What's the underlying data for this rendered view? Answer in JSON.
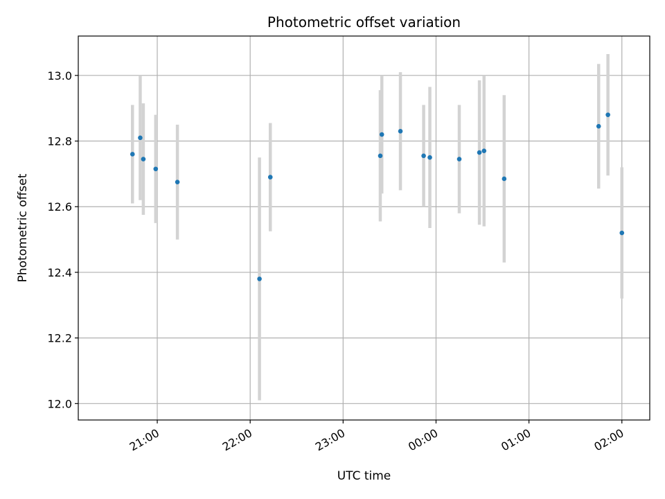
{
  "chart_data": {
    "type": "scatter",
    "title": "Photometric offset variation",
    "xlabel": "UTC time",
    "ylabel": "Photometric offset",
    "x_tick_labels": [
      "21:00",
      "22:00",
      "23:00",
      "00:00",
      "01:00",
      "02:00"
    ],
    "y_tick_labels": [
      "12.0",
      "12.2",
      "12.4",
      "12.6",
      "12.8",
      "13.0"
    ],
    "ylim": [
      11.95,
      13.12
    ],
    "xlim_minutes_after_21h": [
      -51,
      318
    ],
    "grid": true,
    "point_color": "#1f77b4",
    "errorbar_color": "#d3d3d3",
    "points": [
      {
        "t": "20:44",
        "y": 12.76,
        "err": 0.15
      },
      {
        "t": "20:49",
        "y": 12.81,
        "err": 0.19
      },
      {
        "t": "20:51",
        "y": 12.745,
        "err": 0.17
      },
      {
        "t": "20:59",
        "y": 12.715,
        "err": 0.165
      },
      {
        "t": "21:13",
        "y": 12.675,
        "err": 0.175
      },
      {
        "t": "22:06",
        "y": 12.38,
        "err": 0.37
      },
      {
        "t": "22:13",
        "y": 12.69,
        "err": 0.165
      },
      {
        "t": "23:24",
        "y": 12.755,
        "err": 0.2
      },
      {
        "t": "23:25",
        "y": 12.82,
        "err": 0.18
      },
      {
        "t": "23:37",
        "y": 12.83,
        "err": 0.18
      },
      {
        "t": "23:52",
        "y": 12.755,
        "err": 0.155
      },
      {
        "t": "23:56",
        "y": 12.75,
        "err": 0.215
      },
      {
        "t": "00:15",
        "y": 12.745,
        "err": 0.165
      },
      {
        "t": "00:28",
        "y": 12.765,
        "err": 0.22
      },
      {
        "t": "00:31",
        "y": 12.77,
        "err": 0.23
      },
      {
        "t": "00:44",
        "y": 12.685,
        "err": 0.255
      },
      {
        "t": "01:45",
        "y": 12.845,
        "err": 0.19
      },
      {
        "t": "01:51",
        "y": 12.88,
        "err": 0.185
      },
      {
        "t": "02:00",
        "y": 12.52,
        "err": 0.2
      }
    ]
  }
}
